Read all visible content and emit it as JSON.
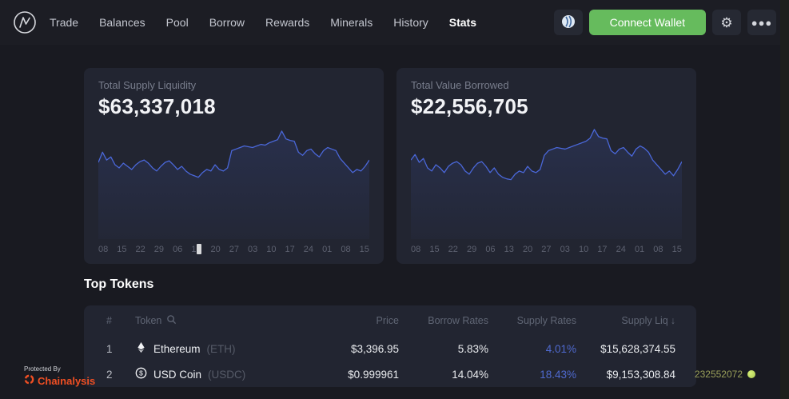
{
  "header": {
    "nav": [
      {
        "label": "Trade",
        "active": false
      },
      {
        "label": "Balances",
        "active": false
      },
      {
        "label": "Pool",
        "active": false
      },
      {
        "label": "Borrow",
        "active": false
      },
      {
        "label": "Rewards",
        "active": false
      },
      {
        "label": "Minerals",
        "active": false
      },
      {
        "label": "History",
        "active": false
      },
      {
        "label": "Stats",
        "active": true
      }
    ],
    "connect_wallet_label": "Connect Wallet",
    "icons": [
      "network-icon",
      "gear-icon",
      "ellipsis-icon"
    ]
  },
  "chart_data": [
    {
      "type": "area",
      "title": "Total Supply Liquidity",
      "value_label": "$63,337,018",
      "x_labels": [
        "08",
        "15",
        "22",
        "29",
        "06",
        "13",
        "20",
        "27",
        "03",
        "10",
        "17",
        "24",
        "01",
        "08",
        "15"
      ],
      "cursor_label_index": 5,
      "y_axis_visible": false,
      "ylim": [
        0,
        100
      ],
      "values": [
        55,
        68,
        58,
        62,
        52,
        48,
        54,
        50,
        46,
        52,
        56,
        58,
        54,
        48,
        44,
        50,
        55,
        57,
        52,
        46,
        50,
        44,
        40,
        38,
        36,
        42,
        46,
        44,
        52,
        46,
        44,
        48,
        70,
        72,
        74,
        76,
        75,
        74,
        76,
        78,
        77,
        80,
        82,
        84,
        95,
        85,
        83,
        82,
        68,
        64,
        70,
        72,
        66,
        62,
        70,
        74,
        72,
        70,
        60,
        54,
        48,
        42,
        46,
        44,
        50,
        58
      ],
      "line_color": "#4a67d8",
      "fill_top": "rgba(74,103,216,0.16)",
      "fill_bottom": "rgba(74,103,216,0.03)"
    },
    {
      "type": "area",
      "title": "Total Value Borrowed",
      "value_label": "$22,556,705",
      "x_labels": [
        "08",
        "15",
        "22",
        "29",
        "06",
        "13",
        "20",
        "27",
        "03",
        "10",
        "17",
        "24",
        "01",
        "08",
        "15"
      ],
      "cursor_label_index": -1,
      "y_axis_visible": false,
      "ylim": [
        0,
        100
      ],
      "values": [
        58,
        65,
        55,
        60,
        48,
        44,
        52,
        48,
        42,
        50,
        54,
        56,
        52,
        44,
        40,
        48,
        54,
        56,
        50,
        42,
        48,
        40,
        36,
        34,
        33,
        40,
        44,
        42,
        50,
        44,
        42,
        46,
        64,
        70,
        72,
        74,
        73,
        72,
        74,
        76,
        78,
        80,
        82,
        86,
        97,
        88,
        86,
        85,
        70,
        66,
        72,
        74,
        68,
        63,
        72,
        76,
        73,
        68,
        58,
        52,
        46,
        40,
        44,
        38,
        46,
        56
      ],
      "line_color": "#4a67d8",
      "fill_top": "rgba(74,103,216,0.16)",
      "fill_bottom": "rgba(74,103,216,0.03)"
    }
  ],
  "top_tokens": {
    "title": "Top Tokens",
    "columns": [
      "#",
      "Token",
      "Price",
      "Borrow Rates",
      "Supply Rates",
      "Supply Liq"
    ],
    "sort_arrow": "↓",
    "rows": [
      {
        "rank": "1",
        "icon": "eth-icon",
        "name": "Ethereum",
        "symbol": "(ETH)",
        "price": "$3,396.95",
        "borrow_rate": "5.83%",
        "supply_rate": "4.01%",
        "supply_liq": "$15,628,374.55"
      },
      {
        "rank": "2",
        "icon": "usdc-icon",
        "name": "USD Coin",
        "symbol": "(USDC)",
        "price": "$0.999961",
        "borrow_rate": "14.04%",
        "supply_rate": "18.43%",
        "supply_liq": "$9,153,308.84"
      }
    ]
  },
  "footer": {
    "protected_by": "Protected By",
    "brand": "Chainalysis",
    "block_number": "232552072"
  },
  "colors": {
    "accent_blue": "#4a67d8",
    "supply_rate_blue": "#4f6ad0",
    "wallet_green": "#66bb5d",
    "chainalysis_orange": "#f04f23",
    "card_bg": "#222531",
    "page_bg": "#191a21",
    "block_green": "#c9e465"
  }
}
